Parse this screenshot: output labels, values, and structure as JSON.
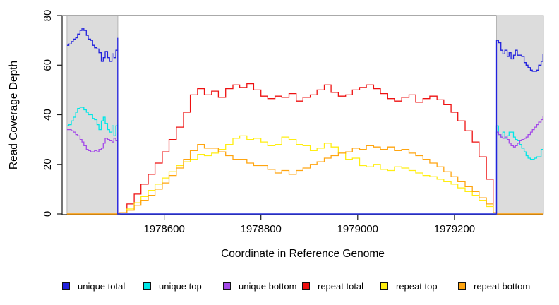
{
  "chart_data": {
    "type": "line",
    "title": "",
    "xlabel": "Coordinate in Reference Genome",
    "ylabel": "Read Coverage Depth",
    "xlim": [
      1978389,
      1979384
    ],
    "ylim": [
      0,
      80
    ],
    "x_ticks": [
      1978600,
      1978800,
      1979000,
      1979200
    ],
    "y_ticks": [
      0,
      20,
      40,
      60,
      80
    ],
    "grid": false,
    "legend_position": "bottom",
    "shaded_regions": [
      {
        "name": "left-unique-flank",
        "x0": 1978399,
        "x1": 1978504,
        "color": "#dcdcdc",
        "border": "#b5b5b5"
      },
      {
        "name": "right-unique-flank",
        "x0": 1979287,
        "x1": 1979384,
        "color": "#dcdcdc",
        "border": "#b5b5b5"
      }
    ],
    "series": [
      {
        "name": "repeat total",
        "color": "#ee1111",
        "x": [
          1978399,
          1978508,
          1978523,
          1978538,
          1978552,
          1978567,
          1978581,
          1978596,
          1978610,
          1978625,
          1978640,
          1978654,
          1978669,
          1978683,
          1978698,
          1978712,
          1978727,
          1978742,
          1978756,
          1978771,
          1978785,
          1978800,
          1978814,
          1978829,
          1978843,
          1978858,
          1978873,
          1978887,
          1978902,
          1978916,
          1978931,
          1978945,
          1978960,
          1978975,
          1978989,
          1979004,
          1979018,
          1979033,
          1979047,
          1979062,
          1979076,
          1979091,
          1979106,
          1979120,
          1979135,
          1979149,
          1979164,
          1979178,
          1979193,
          1979207,
          1979222,
          1979237,
          1979251,
          1979266,
          1979280,
          1979287,
          1979383
        ],
        "y": [
          0,
          0.5,
          4,
          8,
          12,
          16,
          20.5,
          25,
          30,
          35,
          41,
          48,
          50.5,
          48,
          49.5,
          47,
          50.5,
          52,
          51,
          52.5,
          50,
          47.5,
          46.5,
          47.5,
          47,
          48.5,
          45.5,
          47,
          48,
          50,
          52,
          49,
          47.5,
          48,
          50,
          51,
          52,
          50.5,
          48.5,
          46.5,
          45.5,
          47,
          48,
          45,
          46.5,
          47.5,
          46,
          44,
          41,
          37.5,
          33.5,
          29,
          23,
          14,
          0.5,
          0,
          0
        ]
      },
      {
        "name": "repeat top",
        "color": "#ffee11",
        "x": [
          1978399,
          1978508,
          1978523,
          1978538,
          1978552,
          1978567,
          1978581,
          1978596,
          1978610,
          1978625,
          1978640,
          1978654,
          1978669,
          1978683,
          1978698,
          1978712,
          1978727,
          1978742,
          1978756,
          1978771,
          1978785,
          1978800,
          1978814,
          1978829,
          1978843,
          1978858,
          1978873,
          1978887,
          1978902,
          1978916,
          1978931,
          1978945,
          1978960,
          1978975,
          1978989,
          1979004,
          1979018,
          1979033,
          1979047,
          1979062,
          1979076,
          1979091,
          1979106,
          1979120,
          1979135,
          1979149,
          1979164,
          1979178,
          1979193,
          1979207,
          1979222,
          1979237,
          1979251,
          1979266,
          1979280,
          1979287,
          1979383
        ],
        "y": [
          0,
          0.5,
          2,
          4.5,
          7,
          9.5,
          12,
          14.5,
          17,
          19.5,
          21,
          22,
          24,
          23.5,
          24.5,
          26,
          28,
          30.5,
          31.5,
          30,
          30.5,
          29,
          27.5,
          28,
          31,
          30,
          28,
          27.5,
          25.5,
          26.5,
          28.5,
          27,
          24.5,
          22,
          22.5,
          19.5,
          19,
          20,
          18,
          17.5,
          19,
          18.5,
          17.5,
          16.5,
          15.5,
          15,
          14,
          13,
          12,
          10.5,
          9,
          7.5,
          5.5,
          3,
          0.5,
          0,
          0
        ]
      },
      {
        "name": "repeat bottom",
        "color": "#ffa510",
        "x": [
          1978399,
          1978508,
          1978523,
          1978538,
          1978552,
          1978567,
          1978581,
          1978596,
          1978610,
          1978625,
          1978640,
          1978654,
          1978669,
          1978683,
          1978698,
          1978712,
          1978727,
          1978742,
          1978756,
          1978771,
          1978785,
          1978800,
          1978814,
          1978829,
          1978843,
          1978858,
          1978873,
          1978887,
          1978902,
          1978916,
          1978931,
          1978945,
          1978960,
          1978975,
          1978989,
          1979004,
          1979018,
          1979033,
          1979047,
          1979062,
          1979076,
          1979091,
          1979106,
          1979120,
          1979135,
          1979149,
          1979164,
          1979178,
          1979193,
          1979207,
          1979222,
          1979237,
          1979251,
          1979266,
          1979280,
          1979287,
          1979383
        ],
        "y": [
          0,
          0.5,
          1.5,
          3.5,
          5.5,
          7.5,
          10,
          12.5,
          15.5,
          18.5,
          22,
          25.5,
          28,
          26.5,
          26.5,
          25,
          23.5,
          22,
          22,
          20.5,
          19.5,
          19.5,
          18,
          16.5,
          17.5,
          16,
          17.5,
          18.5,
          20,
          21,
          22.5,
          23.5,
          24.5,
          25,
          26.5,
          26,
          27.5,
          27,
          26,
          27,
          25.5,
          26,
          24.5,
          23.5,
          22,
          20.5,
          19,
          17,
          15,
          13,
          11,
          9,
          6.5,
          4,
          0.5,
          0,
          0
        ]
      },
      {
        "name": "unique top",
        "color": "#00e6e6",
        "x": [
          1978399,
          1978403,
          1978408,
          1978412,
          1978417,
          1978421,
          1978426,
          1978430,
          1978434,
          1978439,
          1978443,
          1978448,
          1978452,
          1978456,
          1978461,
          1978465,
          1978470,
          1978474,
          1978478,
          1978483,
          1978487,
          1978492,
          1978496,
          1978500,
          1978504,
          1978504,
          1979287,
          1979287,
          1979291,
          1979296,
          1979300,
          1979304,
          1979309,
          1979313,
          1979317,
          1979322,
          1979326,
          1979330,
          1979335,
          1979339,
          1979344,
          1979348,
          1979352,
          1979357,
          1979361,
          1979365,
          1979370,
          1979374,
          1979379,
          1979383
        ],
        "y": [
          35.5,
          36,
          37.5,
          39,
          41,
          42.5,
          43,
          43,
          42,
          41,
          40,
          40,
          38.5,
          38,
          36,
          34,
          37.5,
          39,
          36.5,
          34,
          33,
          35.5,
          31.5,
          35.5,
          36,
          0,
          0,
          35.5,
          32,
          31,
          33,
          30.5,
          31.5,
          33,
          33,
          31,
          30,
          29.5,
          28,
          26.5,
          25,
          23.5,
          22.5,
          22,
          22,
          22.5,
          23,
          23,
          26,
          26
        ]
      },
      {
        "name": "unique bottom",
        "color": "#a44ae8",
        "x": [
          1978399,
          1978403,
          1978408,
          1978412,
          1978417,
          1978421,
          1978426,
          1978430,
          1978434,
          1978439,
          1978443,
          1978448,
          1978452,
          1978456,
          1978461,
          1978465,
          1978470,
          1978474,
          1978478,
          1978483,
          1978487,
          1978492,
          1978496,
          1978500,
          1978504,
          1978504,
          1979287,
          1979287,
          1979291,
          1979296,
          1979300,
          1979304,
          1979309,
          1979313,
          1979317,
          1979322,
          1979326,
          1979330,
          1979335,
          1979339,
          1979344,
          1979348,
          1979352,
          1979357,
          1979361,
          1979365,
          1979370,
          1979374,
          1979379,
          1979383
        ],
        "y": [
          34,
          34,
          33.5,
          33,
          32,
          31.5,
          30,
          29,
          27.5,
          26,
          25.5,
          25,
          25,
          25.5,
          25,
          26,
          26.5,
          28.5,
          30.5,
          30,
          29.5,
          29,
          30.5,
          29.5,
          32.5,
          0,
          0,
          33,
          32,
          31,
          30.5,
          31,
          30,
          28.5,
          27.5,
          27,
          27.5,
          28.5,
          29.5,
          30,
          30.5,
          31,
          32,
          33,
          34,
          35,
          36,
          37,
          38,
          39.5
        ]
      },
      {
        "name": "unique total",
        "color": "#2121dd",
        "x": [
          1978399,
          1978403,
          1978408,
          1978412,
          1978417,
          1978421,
          1978426,
          1978430,
          1978434,
          1978439,
          1978443,
          1978448,
          1978452,
          1978456,
          1978461,
          1978465,
          1978470,
          1978474,
          1978478,
          1978483,
          1978487,
          1978492,
          1978496,
          1978500,
          1978504,
          1978504,
          1979287,
          1979287,
          1979291,
          1979296,
          1979300,
          1979304,
          1979309,
          1979313,
          1979317,
          1979322,
          1979326,
          1979330,
          1979335,
          1979339,
          1979344,
          1979348,
          1979352,
          1979357,
          1979361,
          1979365,
          1979370,
          1979374,
          1979379,
          1979383
        ],
        "y": [
          68,
          68.5,
          69.5,
          70.5,
          71,
          72.5,
          74,
          75,
          74,
          72,
          70.5,
          70,
          68,
          67,
          66.5,
          65,
          61.5,
          63,
          65.5,
          63,
          61.5,
          64.5,
          63,
          66,
          71,
          0,
          0,
          70,
          69,
          66,
          64.5,
          66,
          63.5,
          65,
          62.5,
          64,
          66,
          64,
          64,
          63.5,
          61,
          60,
          59,
          58,
          57.5,
          57.5,
          58,
          60,
          61.5,
          64.5
        ]
      }
    ]
  },
  "legend": {
    "items": [
      {
        "label": "unique total",
        "color": "#2121dd"
      },
      {
        "label": "unique top",
        "color": "#00e6e6"
      },
      {
        "label": "unique bottom",
        "color": "#a44ae8"
      },
      {
        "label": "repeat total",
        "color": "#ee1111"
      },
      {
        "label": "repeat top",
        "color": "#ffee11"
      },
      {
        "label": "repeat bottom",
        "color": "#ffa510"
      }
    ]
  }
}
